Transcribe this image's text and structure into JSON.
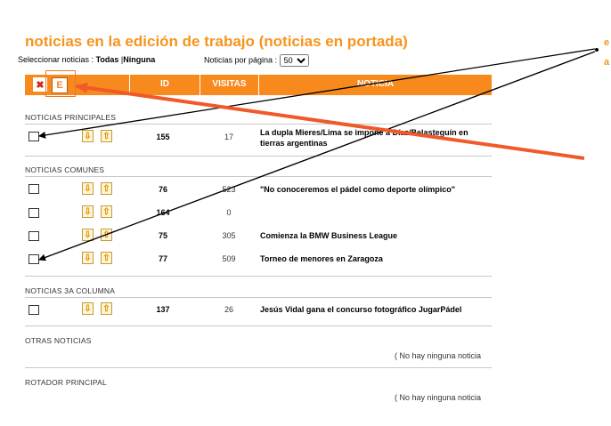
{
  "title": "noticias en la edición de trabajo (noticias en portada)",
  "select": {
    "label": "Seleccionar noticias :",
    "all": "Todas",
    "sep": "|",
    "none": "Ninguna"
  },
  "per_page": {
    "label": "Noticias por página :",
    "value": "50"
  },
  "header": {
    "id": "ID",
    "visitas": "VISITAS",
    "noticia": "NOTICIA"
  },
  "sections": {
    "principales": {
      "label": "NOTICIAS PRINCIPALES",
      "rows": [
        {
          "id": "155",
          "visitas": "17",
          "noticia": "La dupla Mieres/Lima se impone a Díaz/Belasteguín en tierras argentinas"
        }
      ]
    },
    "comunes": {
      "label": "NOTICIAS COMUNES",
      "rows": [
        {
          "id": "76",
          "visitas": "523",
          "noticia": "\"No conoceremos el pádel como deporte olímpico\""
        },
        {
          "id": "164",
          "visitas": "0",
          "noticia": ""
        },
        {
          "id": "75",
          "visitas": "305",
          "noticia": "Comienza la BMW Business League"
        },
        {
          "id": "77",
          "visitas": "509",
          "noticia": "Torneo de menores en Zaragoza"
        }
      ]
    },
    "columna3": {
      "label": "NOTICIAS 3A COLUMNA",
      "rows": [
        {
          "id": "137",
          "visitas": "26",
          "noticia": "Jesús Vidal gana el concurso fotográfico JugarPádel"
        }
      ]
    },
    "otras": {
      "label": "OTRAS NOTICIAS",
      "empty": "( No hay ninguna noticia"
    },
    "rotador": {
      "label": "ROTADOR PRINCIPAL",
      "empty": "( No hay ninguna noticia"
    }
  },
  "icons": {
    "delete": "delete-icon",
    "edit": "edit-icon",
    "down": "arrow-down-icon",
    "up": "arrow-up-icon"
  },
  "colors": {
    "accent": "#f7891d",
    "annotation_red": "#f05a28",
    "annotation_black": "#000000"
  },
  "right_edge_glyphs": [
    "e",
    "a"
  ]
}
